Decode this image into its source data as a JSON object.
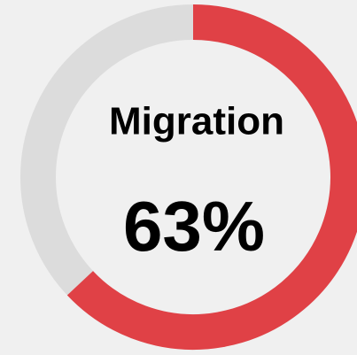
{
  "chart_data": {
    "type": "donut",
    "title": "Migration",
    "values": [
      63
    ],
    "value_labels": [
      "63%"
    ],
    "ylim": [
      0,
      100
    ],
    "color": "#e04146",
    "track_color": "#dcdcdc"
  }
}
